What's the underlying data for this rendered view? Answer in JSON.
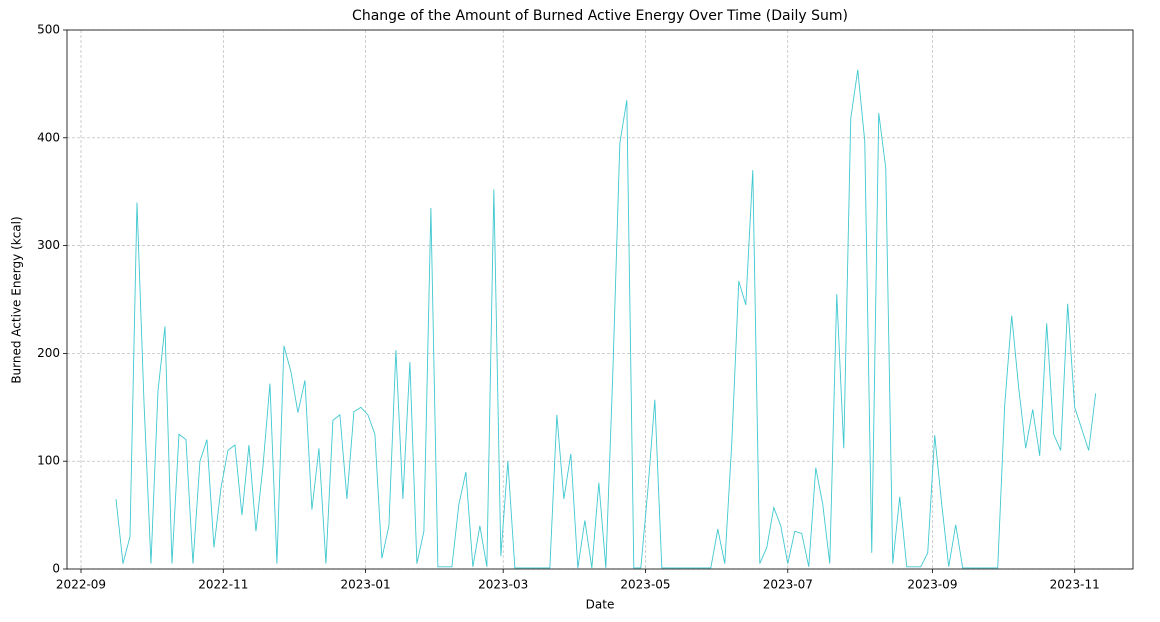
{
  "chart_data": {
    "type": "line",
    "title": "Change of the Amount of Burned Active Energy Over Time (Daily Sum)",
    "x_label": "Date",
    "y_label": "Burned Active Energy (kcal)",
    "x": [
      "2022-09-16",
      "2022-09-19",
      "2022-09-22",
      "2022-09-25",
      "2022-09-28",
      "2022-10-01",
      "2022-10-04",
      "2022-10-07",
      "2022-10-10",
      "2022-10-13",
      "2022-10-16",
      "2022-10-19",
      "2022-10-22",
      "2022-10-25",
      "2022-10-28",
      "2022-10-31",
      "2022-11-03",
      "2022-11-06",
      "2022-11-09",
      "2022-11-12",
      "2022-11-15",
      "2022-11-18",
      "2022-11-21",
      "2022-11-24",
      "2022-11-27",
      "2022-11-30",
      "2022-12-03",
      "2022-12-06",
      "2022-12-09",
      "2022-12-12",
      "2022-12-15",
      "2022-12-18",
      "2022-12-21",
      "2022-12-24",
      "2022-12-27",
      "2022-12-30",
      "2023-01-02",
      "2023-01-05",
      "2023-01-08",
      "2023-01-11",
      "2023-01-14",
      "2023-01-17",
      "2023-01-20",
      "2023-01-23",
      "2023-01-26",
      "2023-01-29",
      "2023-02-01",
      "2023-02-04",
      "2023-02-07",
      "2023-02-10",
      "2023-02-13",
      "2023-02-16",
      "2023-02-19",
      "2023-02-22",
      "2023-02-25",
      "2023-02-28",
      "2023-03-03",
      "2023-03-06",
      "2023-03-09",
      "2023-03-12",
      "2023-03-15",
      "2023-03-18",
      "2023-03-21",
      "2023-03-24",
      "2023-03-27",
      "2023-03-30",
      "2023-04-02",
      "2023-04-05",
      "2023-04-08",
      "2023-04-11",
      "2023-04-14",
      "2023-04-17",
      "2023-04-20",
      "2023-04-23",
      "2023-04-26",
      "2023-04-29",
      "2023-05-02",
      "2023-05-05",
      "2023-05-08",
      "2023-05-11",
      "2023-05-14",
      "2023-05-17",
      "2023-05-20",
      "2023-05-23",
      "2023-05-26",
      "2023-05-29",
      "2023-06-01",
      "2023-06-04",
      "2023-06-07",
      "2023-06-10",
      "2023-06-13",
      "2023-06-16",
      "2023-06-19",
      "2023-06-22",
      "2023-06-25",
      "2023-06-28",
      "2023-07-01",
      "2023-07-04",
      "2023-07-07",
      "2023-07-10",
      "2023-07-13",
      "2023-07-16",
      "2023-07-19",
      "2023-07-22",
      "2023-07-25",
      "2023-07-28",
      "2023-07-31",
      "2023-08-03",
      "2023-08-06",
      "2023-08-09",
      "2023-08-12",
      "2023-08-15",
      "2023-08-18",
      "2023-08-21",
      "2023-08-24",
      "2023-08-27",
      "2023-08-30",
      "2023-09-02",
      "2023-09-05",
      "2023-09-08",
      "2023-09-11",
      "2023-09-14",
      "2023-09-17",
      "2023-09-20",
      "2023-09-23",
      "2023-09-26",
      "2023-09-29",
      "2023-10-02",
      "2023-10-05",
      "2023-10-08",
      "2023-10-11",
      "2023-10-14",
      "2023-10-17",
      "2023-10-20",
      "2023-10-23",
      "2023-10-26",
      "2023-10-29",
      "2023-11-01",
      "2023-11-04",
      "2023-11-07",
      "2023-11-10"
    ],
    "series": [
      {
        "name": "Burned Active Energy",
        "color": "#40c8d0",
        "values": [
          65,
          5,
          30,
          340,
          155,
          5,
          165,
          225,
          5,
          125,
          120,
          5,
          100,
          120,
          20,
          75,
          110,
          115,
          50,
          115,
          35,
          95,
          172,
          5,
          207,
          183,
          145,
          175,
          55,
          112,
          5,
          138,
          143,
          65,
          146,
          150,
          143,
          125,
          10,
          40,
          203,
          65,
          192,
          5,
          35,
          335,
          2,
          2,
          2,
          60,
          90,
          2,
          40,
          2,
          352,
          12,
          100,
          1,
          1,
          1,
          1,
          1,
          1,
          143,
          65,
          107,
          1,
          45,
          1,
          80,
          1,
          182,
          395,
          435,
          1,
          1,
          73,
          157,
          1,
          1,
          1,
          1,
          1,
          1,
          1,
          1,
          37,
          5,
          117,
          267,
          245,
          370,
          5,
          20,
          57,
          40,
          5,
          35,
          33,
          2,
          94,
          60,
          5,
          255,
          112,
          418,
          463,
          397,
          15,
          423,
          372,
          5,
          67,
          2,
          2,
          2,
          15,
          124,
          60,
          2,
          41,
          1,
          1,
          1,
          1,
          1,
          1,
          152,
          235,
          168,
          112,
          148,
          105,
          228,
          125,
          110,
          246,
          150,
          130,
          110,
          163
        ]
      }
    ],
    "xlim": [
      "2022-08-26",
      "2023-11-26"
    ],
    "xticks": [
      {
        "value": "2022-09-01",
        "label": "2022-09"
      },
      {
        "value": "2022-11-01",
        "label": "2022-11"
      },
      {
        "value": "2023-01-01",
        "label": "2023-01"
      },
      {
        "value": "2023-03-01",
        "label": "2023-03"
      },
      {
        "value": "2023-05-01",
        "label": "2023-05"
      },
      {
        "value": "2023-07-01",
        "label": "2023-07"
      },
      {
        "value": "2023-09-01",
        "label": "2023-09"
      },
      {
        "value": "2023-11-01",
        "label": "2023-11"
      }
    ],
    "ylim": [
      0,
      500
    ],
    "yticks": [
      0,
      100,
      200,
      300,
      400,
      500
    ],
    "grid": true
  }
}
